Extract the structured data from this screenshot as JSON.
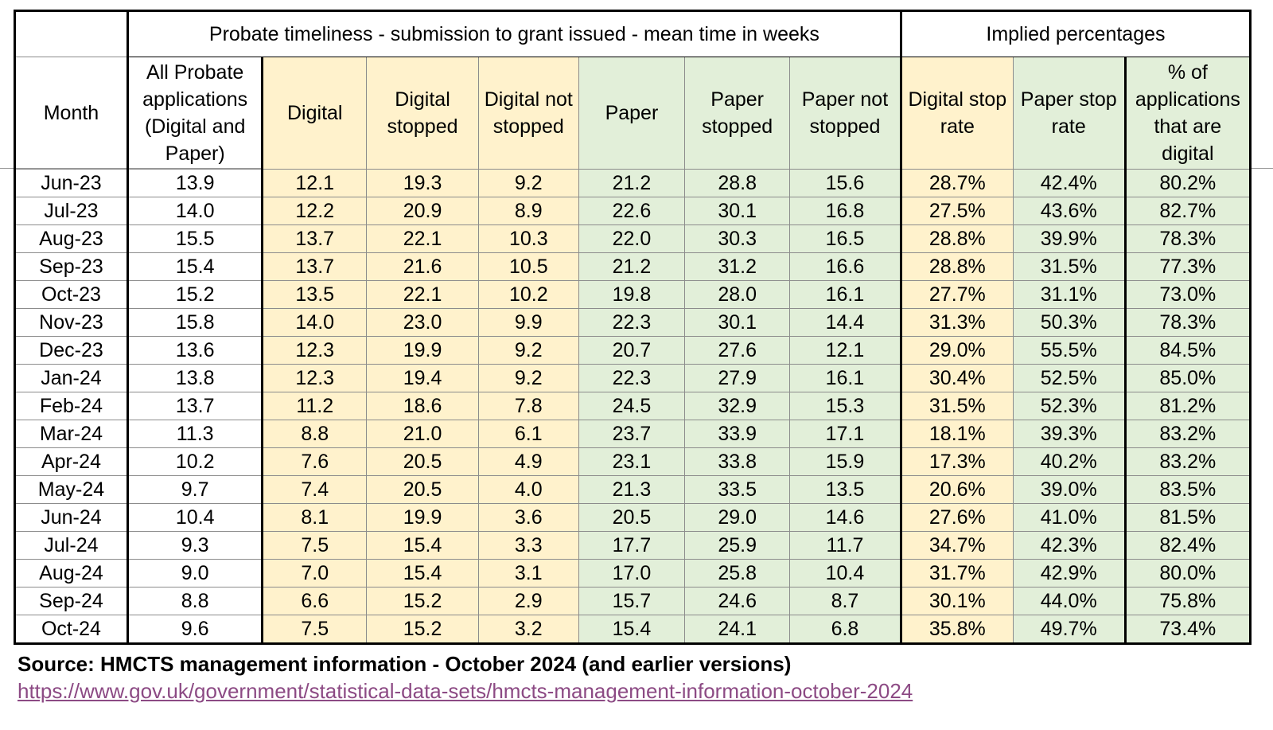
{
  "table": {
    "band_title": "Probate timeliness - submission to grant issued - mean time in weeks",
    "band_implied": "Implied percentages",
    "headers": [
      "Month",
      "All Probate applications (Digital and Paper)",
      "Digital",
      "Digital stopped",
      "Digital not stopped",
      "Paper",
      "Paper stopped",
      "Paper not stopped",
      "Digital stop rate",
      "Paper stop rate",
      "% of applications that are digital"
    ],
    "rows": [
      [
        "Jun-23",
        "13.9",
        "12.1",
        "19.3",
        "9.2",
        "21.2",
        "28.8",
        "15.6",
        "28.7%",
        "42.4%",
        "80.2%"
      ],
      [
        "Jul-23",
        "14.0",
        "12.2",
        "20.9",
        "8.9",
        "22.6",
        "30.1",
        "16.8",
        "27.5%",
        "43.6%",
        "82.7%"
      ],
      [
        "Aug-23",
        "15.5",
        "13.7",
        "22.1",
        "10.3",
        "22.0",
        "30.3",
        "16.5",
        "28.8%",
        "39.9%",
        "78.3%"
      ],
      [
        "Sep-23",
        "15.4",
        "13.7",
        "21.6",
        "10.5",
        "21.2",
        "31.2",
        "16.6",
        "28.8%",
        "31.5%",
        "77.3%"
      ],
      [
        "Oct-23",
        "15.2",
        "13.5",
        "22.1",
        "10.2",
        "19.8",
        "28.0",
        "16.1",
        "27.7%",
        "31.1%",
        "73.0%"
      ],
      [
        "Nov-23",
        "15.8",
        "14.0",
        "23.0",
        "9.9",
        "22.3",
        "30.1",
        "14.4",
        "31.3%",
        "50.3%",
        "78.3%"
      ],
      [
        "Dec-23",
        "13.6",
        "12.3",
        "19.9",
        "9.2",
        "20.7",
        "27.6",
        "12.1",
        "29.0%",
        "55.5%",
        "84.5%"
      ],
      [
        "Jan-24",
        "13.8",
        "12.3",
        "19.4",
        "9.2",
        "22.3",
        "27.9",
        "16.1",
        "30.4%",
        "52.5%",
        "85.0%"
      ],
      [
        "Feb-24",
        "13.7",
        "11.2",
        "18.6",
        "7.8",
        "24.5",
        "32.9",
        "15.3",
        "31.5%",
        "52.3%",
        "81.2%"
      ],
      [
        "Mar-24",
        "11.3",
        "8.8",
        "21.0",
        "6.1",
        "23.7",
        "33.9",
        "17.1",
        "18.1%",
        "39.3%",
        "83.2%"
      ],
      [
        "Apr-24",
        "10.2",
        "7.6",
        "20.5",
        "4.9",
        "23.1",
        "33.8",
        "15.9",
        "17.3%",
        "40.2%",
        "83.2%"
      ],
      [
        "May-24",
        "9.7",
        "7.4",
        "20.5",
        "4.0",
        "21.3",
        "33.5",
        "13.5",
        "20.6%",
        "39.0%",
        "83.5%"
      ],
      [
        "Jun-24",
        "10.4",
        "8.1",
        "19.9",
        "3.6",
        "20.5",
        "29.0",
        "14.6",
        "27.6%",
        "41.0%",
        "81.5%"
      ],
      [
        "Jul-24",
        "9.3",
        "7.5",
        "15.4",
        "3.3",
        "17.7",
        "25.9",
        "11.7",
        "34.7%",
        "42.3%",
        "82.4%"
      ],
      [
        "Aug-24",
        "9.0",
        "7.0",
        "15.4",
        "3.1",
        "17.0",
        "25.8",
        "10.4",
        "31.7%",
        "42.9%",
        "80.0%"
      ],
      [
        "Sep-24",
        "8.8",
        "6.6",
        "15.2",
        "2.9",
        "15.7",
        "24.6",
        "8.7",
        "30.1%",
        "44.0%",
        "75.8%"
      ],
      [
        "Oct-24",
        "9.6",
        "7.5",
        "15.2",
        "3.2",
        "15.4",
        "24.1",
        "6.8",
        "35.8%",
        "49.7%",
        "73.4%"
      ]
    ]
  },
  "source": {
    "label": "Source: HMCTS management information - October 2024 (and earlier versions)",
    "link": "https://www.gov.uk/government/statistical-data-sets/hmcts-management-information-october-2024"
  },
  "colors": {
    "digital_fill": "#fff2cc",
    "paper_fill": "#e2efd9",
    "link_color": "#8c4a84"
  }
}
